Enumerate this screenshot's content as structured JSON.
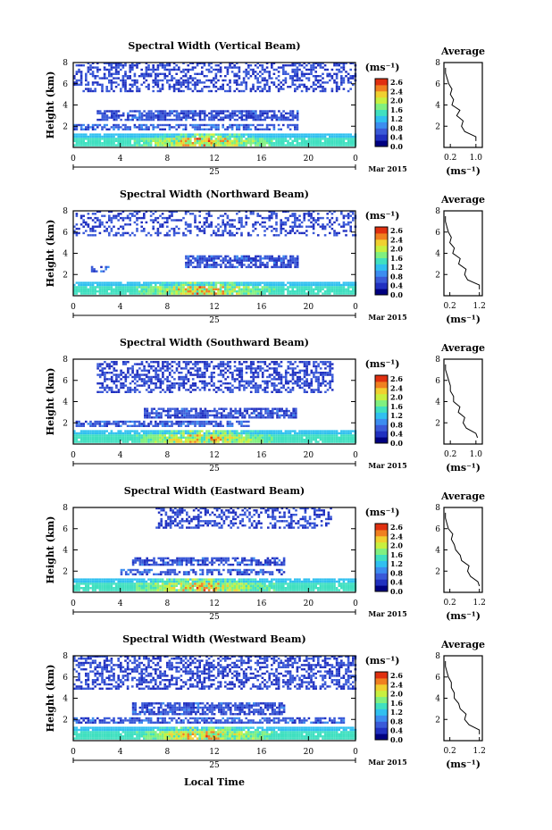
{
  "colorbar": {
    "unit": "(ms⁻¹)",
    "ticks": [
      "2.6",
      "2.4",
      "2.0",
      "1.6",
      "1.2",
      "0.8",
      "0.4",
      "0.0"
    ],
    "colors": [
      "#000080",
      "#2030c0",
      "#3a5ad8",
      "#3c8df0",
      "#30c0f0",
      "#40e0c0",
      "#80f080",
      "#c8f040",
      "#f0d030",
      "#f08020",
      "#e03010"
    ]
  },
  "date_label": "Mar 2015",
  "x_axis_label": "Local Time",
  "chart_data": [
    {
      "type": "heatmap",
      "title": "Spectral Width (Vertical Beam)",
      "ylabel": "Height (km)",
      "xticks": [
        "0",
        "4",
        "8",
        "12",
        "16",
        "20",
        "0"
      ],
      "yticks": [
        "8",
        "6",
        "4",
        "2"
      ],
      "secondary_xtick": "25",
      "xlim": [
        0,
        24
      ],
      "ylim": [
        0,
        8
      ],
      "avg_profile": {
        "title": "Average",
        "xlabel": "(ms⁻¹)",
        "xticks": [
          "0.2",
          "1.0"
        ],
        "yticks": [
          "8",
          "6",
          "4",
          "2"
        ],
        "xlim": [
          0,
          1.2
        ],
        "height": [
          0.6,
          1.0,
          1.5,
          2.0,
          2.5,
          3.0,
          3.5,
          4.0,
          4.5,
          5.0,
          5.5,
          6.0,
          6.5,
          7.0,
          7.5
        ],
        "width": [
          1.0,
          1.0,
          0.65,
          0.55,
          0.6,
          0.4,
          0.5,
          0.25,
          0.3,
          0.2,
          0.25,
          0.15,
          0.1,
          0.05,
          0.05
        ]
      }
    },
    {
      "type": "heatmap",
      "title": "Spectral Width (Northward Beam)",
      "ylabel": "Height (km)",
      "xticks": [
        "0",
        "4",
        "8",
        "12",
        "16",
        "20",
        "0"
      ],
      "yticks": [
        "8",
        "6",
        "4",
        "2"
      ],
      "secondary_xtick": "25",
      "xlim": [
        0,
        24
      ],
      "ylim": [
        0,
        8
      ],
      "avg_profile": {
        "title": "Average",
        "xlabel": "(ms⁻¹)",
        "xticks": [
          "0.2",
          "1.2"
        ],
        "yticks": [
          "8",
          "6",
          "4",
          "2"
        ],
        "xlim": [
          0,
          1.3
        ],
        "height": [
          0.6,
          1.0,
          1.5,
          2.0,
          2.5,
          3.0,
          3.5,
          4.0,
          4.5,
          5.0,
          5.5,
          6.0,
          6.5,
          7.0,
          7.5
        ],
        "width": [
          1.2,
          1.2,
          0.8,
          0.7,
          0.75,
          0.5,
          0.55,
          0.3,
          0.35,
          0.2,
          0.25,
          0.15,
          0.1,
          0.05,
          0.05
        ]
      }
    },
    {
      "type": "heatmap",
      "title": "Spectral Width (Southward Beam)",
      "ylabel": "Height (km)",
      "xticks": [
        "0",
        "4",
        "8",
        "12",
        "16",
        "20",
        "0"
      ],
      "yticks": [
        "8",
        "6",
        "4",
        "2"
      ],
      "secondary_xtick": "25",
      "xlim": [
        0,
        24
      ],
      "ylim": [
        0,
        8
      ],
      "avg_profile": {
        "title": "Average",
        "xlabel": "(ms⁻¹)",
        "xticks": [
          "0.2",
          "1.0"
        ],
        "yticks": [
          "8",
          "6",
          "4",
          "2"
        ],
        "xlim": [
          0,
          1.2
        ],
        "height": [
          0.6,
          1.0,
          1.5,
          2.0,
          2.5,
          3.0,
          3.5,
          4.0,
          4.5,
          5.0,
          5.5,
          6.0,
          6.5,
          7.0,
          7.5
        ],
        "width": [
          1.05,
          1.0,
          0.7,
          0.6,
          0.65,
          0.45,
          0.5,
          0.3,
          0.3,
          0.2,
          0.2,
          0.15,
          0.1,
          0.05,
          0.05
        ]
      }
    },
    {
      "type": "heatmap",
      "title": "Spectral Width (Eastward Beam)",
      "ylabel": "Height (km)",
      "xticks": [
        "0",
        "4",
        "8",
        "12",
        "16",
        "20",
        "0"
      ],
      "yticks": [
        "8",
        "6",
        "4",
        "2"
      ],
      "secondary_xtick": "25",
      "xlim": [
        0,
        24
      ],
      "ylim": [
        0,
        8
      ],
      "avg_profile": {
        "title": "Average",
        "xlabel": "(ms⁻¹)",
        "xticks": [
          "0.2",
          "1.2"
        ],
        "yticks": [
          "8",
          "6",
          "4",
          "2"
        ],
        "xlim": [
          0,
          1.3
        ],
        "height": [
          0.6,
          1.0,
          1.5,
          2.0,
          2.5,
          3.0,
          3.5,
          4.0,
          4.5,
          5.0,
          5.5,
          6.0,
          6.5,
          7.0,
          7.5
        ],
        "width": [
          1.2,
          1.15,
          0.9,
          0.8,
          0.85,
          0.6,
          0.55,
          0.4,
          0.35,
          0.25,
          0.3,
          0.15,
          0.1,
          0.05,
          0.05
        ]
      }
    },
    {
      "type": "heatmap",
      "title": "Spectral Width (Westward Beam)",
      "ylabel": "Height (km)",
      "xticks": [
        "0",
        "4",
        "8",
        "12",
        "16",
        "20",
        "0"
      ],
      "yticks": [
        "8",
        "6",
        "4",
        "2"
      ],
      "secondary_xtick": "25",
      "xlim": [
        0,
        24
      ],
      "ylim": [
        0,
        8
      ],
      "avg_profile": {
        "title": "Average",
        "xlabel": "(ms⁻¹)",
        "xticks": [
          "0.2",
          "1.2"
        ],
        "yticks": [
          "8",
          "6",
          "4",
          "2"
        ],
        "xlim": [
          0,
          1.3
        ],
        "height": [
          0.6,
          1.0,
          1.5,
          2.0,
          2.5,
          3.0,
          3.5,
          4.0,
          4.5,
          5.0,
          5.5,
          6.0,
          6.5,
          7.0,
          7.5
        ],
        "width": [
          1.2,
          1.2,
          0.85,
          0.7,
          0.75,
          0.55,
          0.5,
          0.35,
          0.35,
          0.25,
          0.25,
          0.15,
          0.1,
          0.05,
          0.05
        ]
      }
    }
  ]
}
